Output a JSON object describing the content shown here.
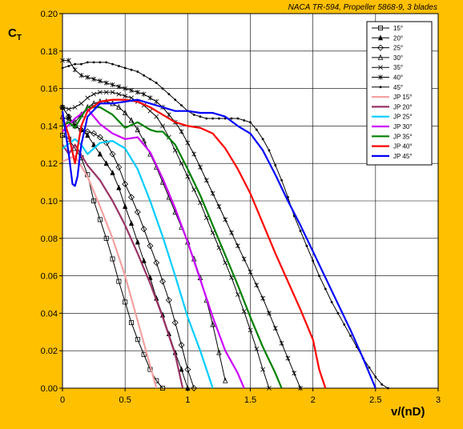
{
  "chart_data": {
    "type": "line",
    "title": "NACA TR-594, Propeller 5868-9, 3 blades",
    "xlabel": "v/(nD)",
    "ylabel_main": "C",
    "ylabel_sub": "T",
    "xlim": [
      0,
      3
    ],
    "ylim": [
      0,
      0.2
    ],
    "xticks": [
      "0",
      "0.5",
      "1",
      "1.5",
      "2",
      "2.5",
      "3"
    ],
    "yticks": [
      "0.00",
      "0.02",
      "0.04",
      "0.06",
      "0.08",
      "0.10",
      "0.12",
      "0.14",
      "0.16",
      "0.18",
      "0.20"
    ],
    "grid": true,
    "legend_position": "top-right",
    "series": [
      {
        "name": "15°",
        "color": "#000000",
        "marker": "square",
        "x": [
          0.0,
          0.05,
          0.1,
          0.15,
          0.2,
          0.25,
          0.3,
          0.35,
          0.4,
          0.45,
          0.5,
          0.55,
          0.6,
          0.65,
          0.7,
          0.75,
          0.8
        ],
        "y": [
          0.135,
          0.133,
          0.128,
          0.123,
          0.114,
          0.1,
          0.09,
          0.08,
          0.069,
          0.057,
          0.046,
          0.035,
          0.026,
          0.018,
          0.01,
          0.004,
          0.0
        ]
      },
      {
        "name": "20°",
        "color": "#000000",
        "marker": "triangle",
        "x": [
          0.0,
          0.05,
          0.1,
          0.15,
          0.2,
          0.25,
          0.3,
          0.35,
          0.4,
          0.45,
          0.5,
          0.55,
          0.6,
          0.65,
          0.7,
          0.75,
          0.8,
          0.85,
          0.9,
          0.95,
          1.0
        ],
        "y": [
          0.15,
          0.145,
          0.14,
          0.138,
          0.135,
          0.13,
          0.125,
          0.12,
          0.115,
          0.107,
          0.097,
          0.088,
          0.078,
          0.068,
          0.059,
          0.048,
          0.039,
          0.029,
          0.019,
          0.01,
          0.0
        ]
      },
      {
        "name": "25°",
        "color": "#000000",
        "marker": "diamond",
        "x": [
          0.0,
          0.05,
          0.1,
          0.15,
          0.2,
          0.25,
          0.3,
          0.35,
          0.4,
          0.45,
          0.5,
          0.55,
          0.6,
          0.65,
          0.7,
          0.75,
          0.8,
          0.85,
          0.9,
          0.95,
          1.0,
          1.05
        ],
        "y": [
          0.15,
          0.145,
          0.14,
          0.138,
          0.137,
          0.136,
          0.134,
          0.131,
          0.125,
          0.118,
          0.109,
          0.102,
          0.094,
          0.085,
          0.076,
          0.067,
          0.057,
          0.047,
          0.035,
          0.023,
          0.01,
          0.0
        ]
      },
      {
        "name": "30°",
        "color": "#000000",
        "marker": "tri-open",
        "x": [
          0.0,
          0.05,
          0.1,
          0.15,
          0.2,
          0.25,
          0.3,
          0.35,
          0.4,
          0.45,
          0.5,
          0.55,
          0.6,
          0.65,
          0.7,
          0.75,
          0.8,
          0.85,
          0.9,
          0.95,
          1.0,
          1.05,
          1.1,
          1.15,
          1.2,
          1.25,
          1.3
        ],
        "y": [
          0.145,
          0.143,
          0.142,
          0.146,
          0.15,
          0.152,
          0.153,
          0.153,
          0.152,
          0.15,
          0.147,
          0.143,
          0.138,
          0.132,
          0.125,
          0.118,
          0.11,
          0.102,
          0.094,
          0.086,
          0.078,
          0.069,
          0.059,
          0.047,
          0.034,
          0.019,
          0.004
        ]
      },
      {
        "name": "35°",
        "color": "#000000",
        "marker": "x",
        "x": [
          0.0,
          0.05,
          0.1,
          0.15,
          0.2,
          0.25,
          0.3,
          0.35,
          0.4,
          0.45,
          0.5,
          0.55,
          0.6,
          0.65,
          0.7,
          0.75,
          0.8,
          0.85,
          0.9,
          0.95,
          1.0,
          1.05,
          1.1,
          1.15,
          1.2,
          1.25,
          1.3,
          1.35,
          1.4,
          1.45,
          1.5,
          1.55,
          1.6,
          1.65
        ],
        "y": [
          0.15,
          0.149,
          0.15,
          0.152,
          0.155,
          0.157,
          0.158,
          0.158,
          0.158,
          0.157,
          0.156,
          0.155,
          0.153,
          0.151,
          0.148,
          0.145,
          0.14,
          0.134,
          0.127,
          0.12,
          0.113,
          0.106,
          0.099,
          0.091,
          0.083,
          0.075,
          0.067,
          0.059,
          0.05,
          0.041,
          0.031,
          0.021,
          0.01,
          0.0
        ]
      },
      {
        "name": "40°",
        "color": "#000000",
        "marker": "cross",
        "x": [
          0.0,
          0.05,
          0.1,
          0.15,
          0.2,
          0.25,
          0.3,
          0.35,
          0.4,
          0.45,
          0.5,
          0.55,
          0.6,
          0.65,
          0.7,
          0.75,
          0.8,
          0.85,
          0.9,
          0.95,
          1.0,
          1.05,
          1.1,
          1.15,
          1.2,
          1.25,
          1.3,
          1.35,
          1.4,
          1.45,
          1.5,
          1.55,
          1.6,
          1.65,
          1.7,
          1.75,
          1.8,
          1.85,
          1.9
        ],
        "y": [
          0.175,
          0.175,
          0.17,
          0.167,
          0.166,
          0.165,
          0.164,
          0.163,
          0.162,
          0.161,
          0.16,
          0.159,
          0.158,
          0.157,
          0.155,
          0.153,
          0.15,
          0.146,
          0.142,
          0.137,
          0.131,
          0.125,
          0.118,
          0.111,
          0.104,
          0.097,
          0.09,
          0.083,
          0.076,
          0.069,
          0.062,
          0.055,
          0.048,
          0.04,
          0.032,
          0.024,
          0.016,
          0.008,
          0.0
        ]
      },
      {
        "name": "45°",
        "color": "#000000",
        "marker": "dot",
        "x": [
          0.0,
          0.05,
          0.1,
          0.15,
          0.2,
          0.25,
          0.3,
          0.35,
          0.4,
          0.45,
          0.5,
          0.55,
          0.6,
          0.65,
          0.7,
          0.75,
          0.8,
          0.85,
          0.9,
          0.95,
          1.0,
          1.05,
          1.1,
          1.15,
          1.2,
          1.25,
          1.3,
          1.35,
          1.4,
          1.45,
          1.5,
          1.55,
          1.6,
          1.65,
          1.7,
          1.75,
          1.8,
          1.85,
          1.9,
          1.95,
          2.0,
          2.05,
          2.1,
          2.15,
          2.2,
          2.25,
          2.3,
          2.35,
          2.4,
          2.45,
          2.5,
          2.55,
          2.6
        ],
        "y": [
          0.171,
          0.172,
          0.173,
          0.173,
          0.174,
          0.174,
          0.174,
          0.174,
          0.173,
          0.172,
          0.171,
          0.17,
          0.169,
          0.167,
          0.165,
          0.163,
          0.16,
          0.157,
          0.154,
          0.151,
          0.148,
          0.146,
          0.145,
          0.144,
          0.144,
          0.144,
          0.144,
          0.144,
          0.144,
          0.143,
          0.142,
          0.138,
          0.133,
          0.127,
          0.119,
          0.111,
          0.102,
          0.092,
          0.084,
          0.076,
          0.068,
          0.06,
          0.053,
          0.046,
          0.04,
          0.034,
          0.028,
          0.022,
          0.016,
          0.011,
          0.006,
          0.002,
          0.0
        ]
      },
      {
        "name": "JP 15°",
        "color": "#F4A0A0",
        "marker": "none",
        "x": [
          0.0,
          0.1,
          0.2,
          0.3,
          0.4,
          0.5,
          0.55,
          0.6,
          0.65,
          0.7,
          0.75
        ],
        "y": [
          0.121,
          0.124,
          0.113,
          0.097,
          0.08,
          0.06,
          0.048,
          0.036,
          0.024,
          0.012,
          0.0
        ]
      },
      {
        "name": "JP 20°",
        "color": "#993366",
        "marker": "none",
        "x": [
          0.0,
          0.05,
          0.1,
          0.2,
          0.3,
          0.4,
          0.5,
          0.6,
          0.7,
          0.8,
          0.9,
          0.96
        ],
        "y": [
          0.13,
          0.125,
          0.13,
          0.119,
          0.111,
          0.1,
          0.087,
          0.072,
          0.056,
          0.038,
          0.018,
          0.0
        ]
      },
      {
        "name": "JP 25°",
        "color": "#00CCFF",
        "marker": "none",
        "x": [
          0.0,
          0.1,
          0.15,
          0.2,
          0.3,
          0.4,
          0.5,
          0.6,
          0.7,
          0.8,
          0.9,
          1.0,
          1.1,
          1.2
        ],
        "y": [
          0.128,
          0.133,
          0.13,
          0.125,
          0.131,
          0.132,
          0.128,
          0.117,
          0.1,
          0.081,
          0.06,
          0.038,
          0.02,
          0.0
        ]
      },
      {
        "name": "JP 30°",
        "color": "#CC00FF",
        "marker": "none",
        "x": [
          0.0,
          0.1,
          0.2,
          0.3,
          0.4,
          0.5,
          0.6,
          0.7,
          0.8,
          0.9,
          1.0,
          1.1,
          1.2,
          1.3,
          1.4,
          1.45
        ],
        "y": [
          0.137,
          0.144,
          0.149,
          0.141,
          0.136,
          0.133,
          0.134,
          0.126,
          0.112,
          0.096,
          0.078,
          0.058,
          0.038,
          0.02,
          0.008,
          0.0
        ]
      },
      {
        "name": "JP 35°",
        "color": "#008000",
        "marker": "none",
        "x": [
          0.0,
          0.05,
          0.1,
          0.15,
          0.2,
          0.3,
          0.4,
          0.5,
          0.6,
          0.7,
          0.75,
          0.8,
          0.9,
          1.0,
          1.1,
          1.2,
          1.3,
          1.4,
          1.5,
          1.6,
          1.7,
          1.75
        ],
        "y": [
          0.14,
          0.142,
          0.139,
          0.145,
          0.15,
          0.15,
          0.146,
          0.139,
          0.142,
          0.138,
          0.137,
          0.137,
          0.13,
          0.117,
          0.103,
          0.087,
          0.071,
          0.055,
          0.038,
          0.022,
          0.008,
          0.0
        ]
      },
      {
        "name": "JP 40°",
        "color": "#FF0000",
        "marker": "none",
        "x": [
          0.0,
          0.05,
          0.1,
          0.15,
          0.2,
          0.3,
          0.4,
          0.5,
          0.6,
          0.7,
          0.8,
          0.9,
          1.0,
          1.1,
          1.2,
          1.3,
          1.4,
          1.5,
          1.6,
          1.7,
          1.8,
          1.9,
          2.0,
          2.05,
          2.1
        ],
        "y": [
          0.145,
          0.135,
          0.12,
          0.14,
          0.148,
          0.153,
          0.154,
          0.154,
          0.153,
          0.15,
          0.146,
          0.142,
          0.14,
          0.139,
          0.136,
          0.128,
          0.117,
          0.104,
          0.088,
          0.072,
          0.057,
          0.042,
          0.026,
          0.01,
          0.0
        ]
      },
      {
        "name": "JP 45°",
        "color": "#0000FF",
        "marker": "none",
        "x": [
          0.0,
          0.05,
          0.08,
          0.1,
          0.12,
          0.15,
          0.2,
          0.3,
          0.4,
          0.5,
          0.6,
          0.7,
          0.8,
          0.9,
          1.0,
          1.1,
          1.2,
          1.3,
          1.4,
          1.5,
          1.6,
          1.7,
          1.8,
          1.9,
          2.0,
          2.1,
          2.2,
          2.3,
          2.4,
          2.5
        ],
        "y": [
          0.148,
          0.125,
          0.109,
          0.108,
          0.113,
          0.13,
          0.145,
          0.152,
          0.152,
          0.153,
          0.154,
          0.152,
          0.15,
          0.148,
          0.148,
          0.147,
          0.147,
          0.145,
          0.14,
          0.136,
          0.127,
          0.114,
          0.1,
          0.087,
          0.073,
          0.059,
          0.045,
          0.031,
          0.016,
          0.0
        ]
      }
    ]
  }
}
